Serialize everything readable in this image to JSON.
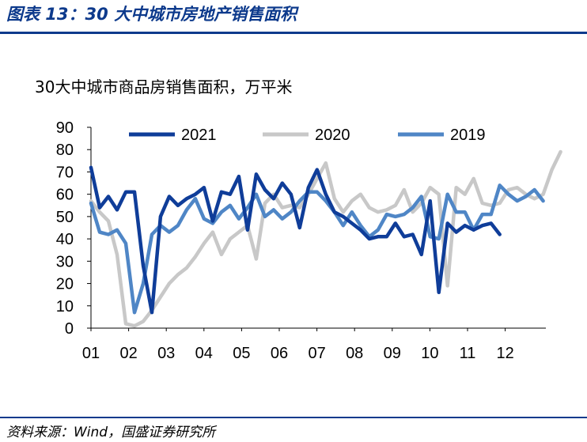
{
  "figure": {
    "title": "图表 13：30 大中城市房地产销售面积",
    "source": "资料来源：Wind，国盛证券研究所"
  },
  "colors": {
    "rule": "#0d3a8c",
    "title": "#0d3a8c",
    "series_2021": "#0f3d99",
    "series_2020": "#c8c8c8",
    "series_2019": "#4f86c6"
  },
  "chart_data": {
    "type": "line",
    "title": "30大中城市商品房销售面积，万平米",
    "xlabel": "",
    "ylabel": "",
    "ylim": [
      0,
      90
    ],
    "yticks": [
      "0",
      "10",
      "20",
      "30",
      "40",
      "50",
      "60",
      "70",
      "80",
      "90"
    ],
    "xticks": [
      "01",
      "02",
      "03",
      "04",
      "05",
      "06",
      "07",
      "08",
      "09",
      "10",
      "11",
      "12"
    ],
    "x_unit": "week index (52 weeks, ~4.33 per month)",
    "grid": false,
    "legend": "top",
    "series": [
      {
        "name": "2021",
        "color": "#0f3d99",
        "values": [
          72,
          54,
          59,
          53,
          61,
          61,
          28,
          7,
          50,
          59,
          55,
          58,
          60,
          63,
          48,
          61,
          60,
          68,
          44,
          69,
          62,
          58,
          65,
          60,
          45,
          63,
          71,
          60,
          52,
          50,
          47,
          44,
          40,
          41,
          41,
          47,
          41,
          42,
          33,
          57,
          16,
          47,
          43,
          46,
          44,
          46,
          47,
          42
        ]
      },
      {
        "name": "2020",
        "color": "#c8c8c8",
        "values": [
          57,
          52,
          48,
          33,
          2,
          1,
          3,
          8,
          14,
          20,
          24,
          27,
          32,
          38,
          43,
          33,
          40,
          43,
          46,
          31,
          56,
          60,
          54,
          55,
          54,
          60,
          67,
          74,
          58,
          52,
          57,
          60,
          54,
          52,
          53,
          55,
          62,
          52,
          56,
          63,
          60,
          19,
          63,
          60,
          67,
          56,
          55,
          56,
          62,
          63,
          60,
          58,
          60,
          71,
          79
        ]
      },
      {
        "name": "2019",
        "color": "#4f86c6",
        "values": [
          56,
          43,
          42,
          44,
          38,
          7,
          20,
          42,
          46,
          43,
          46,
          53,
          58,
          49,
          47,
          52,
          55,
          49,
          54,
          60,
          50,
          53,
          49,
          52,
          57,
          61,
          61,
          57,
          52,
          46,
          52,
          46,
          41,
          44,
          51,
          50,
          51,
          54,
          59,
          41,
          40,
          60,
          52,
          52,
          44,
          51,
          51,
          64,
          60,
          57,
          59,
          62,
          57
        ]
      }
    ]
  }
}
